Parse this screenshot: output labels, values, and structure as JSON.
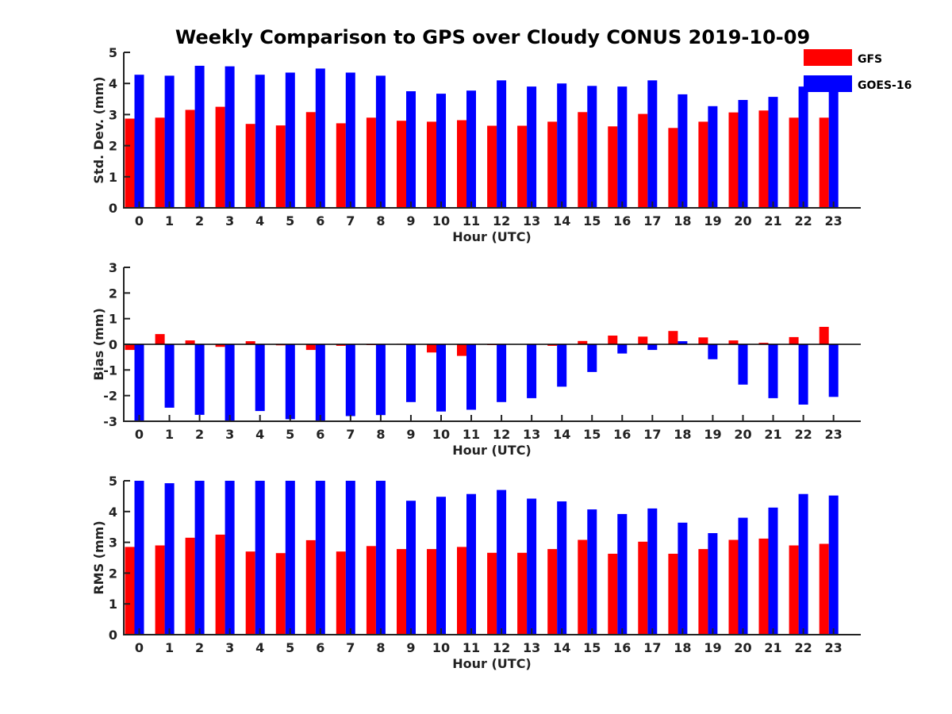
{
  "title": "Weekly Comparison to GPS over Cloudy CONUS 2019-10-09",
  "legend": [
    {
      "name": "GFS",
      "color": "#ff0000"
    },
    {
      "name": "GOES-16",
      "color": "#0000ff"
    }
  ],
  "chart_data": [
    {
      "type": "bar",
      "ylabel": "Std. Dev. (mm)",
      "xlabel": "Hour (UTC)",
      "ylim": [
        0,
        5
      ],
      "yticks": [
        0,
        1,
        2,
        3,
        4,
        5
      ],
      "categories": [
        "0",
        "1",
        "2",
        "3",
        "4",
        "5",
        "6",
        "7",
        "8",
        "9",
        "10",
        "11",
        "12",
        "13",
        "14",
        "15",
        "16",
        "17",
        "18",
        "19",
        "20",
        "21",
        "22",
        "23"
      ],
      "series": [
        {
          "name": "GFS",
          "color": "#ff0000",
          "values": [
            2.87,
            2.9,
            3.15,
            3.25,
            2.7,
            2.65,
            3.08,
            2.72,
            2.9,
            2.8,
            2.77,
            2.82,
            2.64,
            2.64,
            2.77,
            3.08,
            2.62,
            3.02,
            2.57,
            2.77,
            3.07,
            3.13,
            2.9,
            2.9
          ]
        },
        {
          "name": "GOES-16",
          "color": "#0000ff",
          "values": [
            4.28,
            4.25,
            4.57,
            4.55,
            4.28,
            4.35,
            4.48,
            4.35,
            4.25,
            3.75,
            3.67,
            3.77,
            4.1,
            3.9,
            4.0,
            3.92,
            3.9,
            4.1,
            3.65,
            3.27,
            3.47,
            3.57,
            3.9,
            3.9
          ]
        }
      ]
    },
    {
      "type": "bar",
      "ylabel": "Bias (mm)",
      "xlabel": "Hour (UTC)",
      "ylim": [
        -3,
        3
      ],
      "yticks": [
        -3,
        -2,
        -1,
        0,
        1,
        2,
        3
      ],
      "categories": [
        "0",
        "1",
        "2",
        "3",
        "4",
        "5",
        "6",
        "7",
        "8",
        "9",
        "10",
        "11",
        "12",
        "13",
        "14",
        "15",
        "16",
        "17",
        "18",
        "19",
        "20",
        "21",
        "22",
        "23"
      ],
      "series": [
        {
          "name": "GFS",
          "color": "#ff0000",
          "values": [
            -0.22,
            0.4,
            0.15,
            -0.1,
            0.12,
            -0.04,
            -0.22,
            -0.06,
            -0.03,
            0.02,
            -0.32,
            -0.45,
            -0.03,
            0.0,
            -0.06,
            0.13,
            0.34,
            0.3,
            0.52,
            0.27,
            0.15,
            0.06,
            0.28,
            0.68
          ]
        },
        {
          "name": "GOES-16",
          "color": "#0000ff",
          "values": [
            -3.0,
            -2.47,
            -2.75,
            -3.0,
            -2.6,
            -2.92,
            -3.0,
            -2.8,
            -2.76,
            -2.25,
            -2.62,
            -2.55,
            -2.25,
            -2.1,
            -1.65,
            -1.08,
            -0.36,
            -0.22,
            0.12,
            -0.58,
            -1.57,
            -2.1,
            -2.35,
            -2.05
          ]
        }
      ]
    },
    {
      "type": "bar",
      "ylabel": "RMS (mm)",
      "xlabel": "Hour (UTC)",
      "ylim": [
        0,
        5
      ],
      "yticks": [
        0,
        1,
        2,
        3,
        4,
        5
      ],
      "categories": [
        "0",
        "1",
        "2",
        "3",
        "4",
        "5",
        "6",
        "7",
        "8",
        "9",
        "10",
        "11",
        "12",
        "13",
        "14",
        "15",
        "16",
        "17",
        "18",
        "19",
        "20",
        "21",
        "22",
        "23"
      ],
      "series": [
        {
          "name": "GFS",
          "color": "#ff0000",
          "values": [
            2.85,
            2.9,
            3.15,
            3.25,
            2.7,
            2.65,
            3.07,
            2.7,
            2.88,
            2.78,
            2.78,
            2.85,
            2.66,
            2.66,
            2.78,
            3.08,
            2.63,
            3.02,
            2.63,
            2.78,
            3.08,
            3.12,
            2.9,
            2.95
          ]
        },
        {
          "name": "GOES-16",
          "color": "#0000ff",
          "values": [
            5.0,
            4.92,
            5.0,
            5.0,
            5.0,
            5.0,
            5.0,
            5.0,
            5.0,
            4.35,
            4.48,
            4.57,
            4.7,
            4.42,
            4.33,
            4.07,
            3.92,
            4.1,
            3.64,
            3.3,
            3.8,
            4.13,
            4.57,
            4.52
          ]
        }
      ]
    }
  ]
}
